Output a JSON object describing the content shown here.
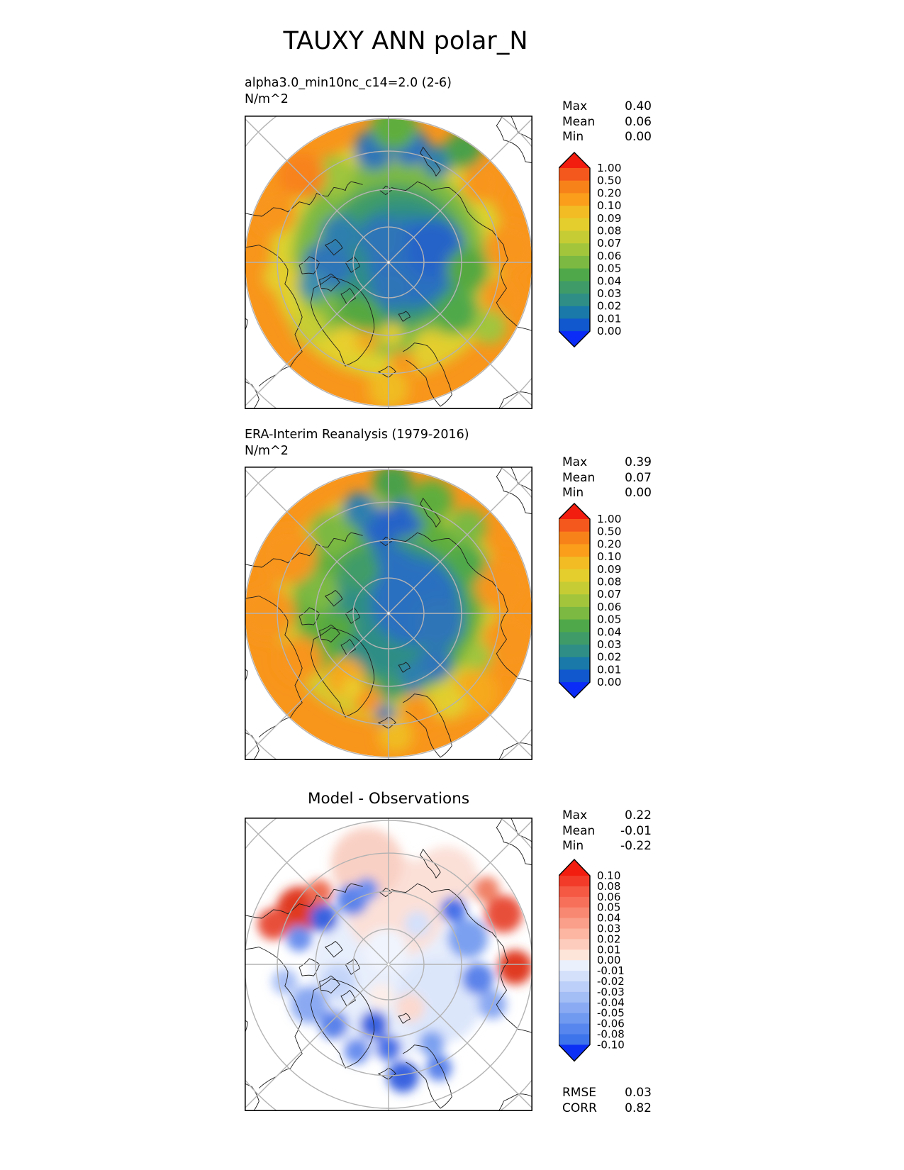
{
  "title": "TAUXY ANN polar_N",
  "chart_data": [
    {
      "type": "heatmap",
      "projection": "north_polar_stereographic",
      "title": "alpha3.0_min10nc_c14=2.0 (2-6)",
      "units": "N/m^2",
      "stats": [
        {
          "label": "Max",
          "value": "0.40"
        },
        {
          "label": "Mean",
          "value": "0.06"
        },
        {
          "label": "Min",
          "value": "0.00"
        }
      ],
      "colorbar": {
        "ticks": [
          "1.00",
          "0.50",
          "0.20",
          "0.10",
          "0.09",
          "0.08",
          "0.07",
          "0.06",
          "0.05",
          "0.04",
          "0.03",
          "0.02",
          "0.01",
          "0.00"
        ],
        "band_colors": [
          "#f4581c",
          "#f8821a",
          "#fa9e1b",
          "#f2bc24",
          "#e4ce2d",
          "#c6cd34",
          "#a2c53c",
          "#7bb942",
          "#4fa94a",
          "#3f9c68",
          "#2f8e85",
          "#1a79a8",
          "#1157ce"
        ],
        "over_color": "#f21d0e",
        "under_color": "#0b2bf6"
      },
      "graticule": {
        "circle_radii_frac": [
          0.246,
          0.507,
          0.773,
          1.0,
          1.28
        ],
        "radial_step_deg": 45
      },
      "field_blobs": {
        "base": "#f8951b",
        "blobs": [
          [
            0.0,
            -0.02,
            0.82,
            "#dcd32d"
          ],
          [
            0.0,
            -0.03,
            0.67,
            "#7bb942"
          ],
          [
            0.04,
            -0.04,
            0.5,
            "#3f9c68"
          ],
          [
            0.1,
            -0.02,
            0.4,
            "#2f8e85"
          ],
          [
            0.16,
            0.0,
            0.3,
            "#2a6fc0"
          ],
          [
            0.32,
            -0.1,
            0.2,
            "#2563c8"
          ],
          [
            -0.04,
            -0.16,
            0.16,
            "#2d74b8"
          ],
          [
            0.02,
            0.18,
            0.14,
            "#2d74b8"
          ],
          [
            -0.42,
            0.02,
            0.17,
            "#2d74b8"
          ],
          [
            -0.34,
            -0.2,
            0.13,
            "#2f7fae"
          ],
          [
            -0.52,
            0.16,
            0.1,
            "#3f8fae"
          ],
          [
            -0.1,
            -0.78,
            0.14,
            "#2d74b8"
          ],
          [
            0.15,
            -0.8,
            0.13,
            "#2a6fc0"
          ],
          [
            0.34,
            -0.7,
            0.11,
            "#2f7fae"
          ],
          [
            0.04,
            -0.94,
            0.16,
            "#5fae3e"
          ],
          [
            0.52,
            -0.78,
            0.13,
            "#4aa04a"
          ],
          [
            -0.38,
            -0.6,
            0.14,
            "#9fc43c"
          ],
          [
            -0.6,
            -0.6,
            0.16,
            "#f8821a"
          ],
          [
            -0.8,
            -0.35,
            0.16,
            "#f8951b"
          ],
          [
            0.65,
            -0.55,
            0.14,
            "#f8951b"
          ],
          [
            0.85,
            -0.1,
            0.18,
            "#f8951b"
          ],
          [
            0.8,
            0.25,
            0.16,
            "#f8951b"
          ],
          [
            0.55,
            0.05,
            0.15,
            "#55a83f"
          ],
          [
            0.48,
            0.35,
            0.15,
            "#4fa94a"
          ],
          [
            -0.2,
            0.38,
            0.15,
            "#55a83f"
          ],
          [
            -0.3,
            0.55,
            0.11,
            "#e8cf2d"
          ],
          [
            0.3,
            0.6,
            0.13,
            "#e3ce2d"
          ],
          [
            0.1,
            0.72,
            0.1,
            "#f8951b"
          ],
          [
            -0.15,
            0.55,
            0.08,
            "#f2a91c"
          ],
          [
            0.02,
            0.5,
            0.08,
            "#e3ce2d"
          ],
          [
            0.0,
            0.88,
            0.14,
            "#f0bc24"
          ],
          [
            -0.55,
            0.45,
            0.12,
            "#c6cd34"
          ],
          [
            0.7,
            0.45,
            0.12,
            "#a2c53c"
          ],
          [
            -0.75,
            0.1,
            0.12,
            "#e4ce2d"
          ]
        ]
      }
    },
    {
      "type": "heatmap",
      "projection": "north_polar_stereographic",
      "title": "ERA-Interim Reanalysis (1979-2016)",
      "units": "N/m^2",
      "stats": [
        {
          "label": "Max",
          "value": "0.39"
        },
        {
          "label": "Mean",
          "value": "0.07"
        },
        {
          "label": "Min",
          "value": "0.00"
        }
      ],
      "colorbar": {
        "ticks": [
          "1.00",
          "0.50",
          "0.20",
          "0.10",
          "0.09",
          "0.08",
          "0.07",
          "0.06",
          "0.05",
          "0.04",
          "0.03",
          "0.02",
          "0.01",
          "0.00"
        ],
        "band_colors": [
          "#f4581c",
          "#f8821a",
          "#fa9e1b",
          "#f2bc24",
          "#e4ce2d",
          "#c6cd34",
          "#a2c53c",
          "#7bb942",
          "#4fa94a",
          "#3f9c68",
          "#2f8e85",
          "#1a79a8",
          "#1157ce"
        ],
        "over_color": "#f21d0e",
        "under_color": "#0b2bf6"
      },
      "graticule": {
        "circle_radii_frac": [
          0.246,
          0.507,
          0.773,
          1.0,
          1.28
        ],
        "radial_step_deg": 45
      },
      "field_blobs": {
        "base": "#f8951b",
        "blobs": [
          [
            0.0,
            -0.05,
            0.8,
            "#cfd030"
          ],
          [
            0.0,
            -0.08,
            0.66,
            "#5fae3e"
          ],
          [
            0.06,
            -0.02,
            0.48,
            "#2f8e85"
          ],
          [
            0.18,
            -0.08,
            0.3,
            "#2a6fc0"
          ],
          [
            0.02,
            -0.28,
            0.18,
            "#2a6fc0"
          ],
          [
            0.35,
            0.06,
            0.17,
            "#2d74b8"
          ],
          [
            -0.05,
            -0.6,
            0.14,
            "#2563c8"
          ],
          [
            0.12,
            -0.66,
            0.13,
            "#2563c8"
          ],
          [
            -0.2,
            -0.72,
            0.12,
            "#2f7fae"
          ],
          [
            0.32,
            0.35,
            0.12,
            "#2d74b8"
          ],
          [
            0.16,
            0.45,
            0.1,
            "#2f7fae"
          ],
          [
            0.3,
            -0.78,
            0.15,
            "#5fae3e"
          ],
          [
            -0.4,
            -0.55,
            0.15,
            "#7bb942"
          ],
          [
            0.03,
            -0.9,
            0.14,
            "#4aa04a"
          ],
          [
            0.55,
            -0.6,
            0.13,
            "#7bb942"
          ],
          [
            -0.7,
            -0.4,
            0.2,
            "#f8951b"
          ],
          [
            -0.85,
            0.0,
            0.2,
            "#f8951b"
          ],
          [
            -0.62,
            0.32,
            0.16,
            "#f8951b"
          ],
          [
            0.8,
            -0.2,
            0.2,
            "#f8951b"
          ],
          [
            0.85,
            0.2,
            0.2,
            "#f8951b"
          ],
          [
            0.6,
            0.55,
            0.16,
            "#f6a91c"
          ],
          [
            -0.3,
            0.45,
            0.14,
            "#f6a91c"
          ],
          [
            -0.15,
            0.6,
            0.1,
            "#f8951b"
          ],
          [
            -0.25,
            0.52,
            0.07,
            "#e8cf2d"
          ],
          [
            0.2,
            0.68,
            0.12,
            "#f8951b"
          ],
          [
            0.02,
            0.52,
            0.09,
            "#3f9c68"
          ],
          [
            -0.02,
            0.7,
            0.07,
            "#2d74b8"
          ],
          [
            0.42,
            0.62,
            0.12,
            "#e3ce2d"
          ],
          [
            0.05,
            0.85,
            0.12,
            "#f0bc24"
          ],
          [
            -0.48,
            -0.15,
            0.14,
            "#7bb942"
          ],
          [
            -0.35,
            0.1,
            0.12,
            "#55a83f"
          ],
          [
            0.55,
            -0.35,
            0.13,
            "#4fa94a"
          ],
          [
            -0.2,
            -0.3,
            0.14,
            "#3f9c68"
          ],
          [
            0.62,
            0.3,
            0.1,
            "#a2c53c"
          ]
        ]
      }
    },
    {
      "type": "heatmap",
      "projection": "north_polar_stereographic",
      "title": "Model - Observations",
      "units": "",
      "stats": [
        {
          "label": "Max",
          "value": "0.22"
        },
        {
          "label": "Mean",
          "value": "-0.01"
        },
        {
          "label": "Min",
          "value": "-0.22"
        }
      ],
      "metrics": [
        {
          "label": "RMSE",
          "value": "0.03"
        },
        {
          "label": "CORR",
          "value": "0.82"
        }
      ],
      "colorbar": {
        "ticks": [
          "0.10",
          "0.08",
          "0.06",
          "0.05",
          "0.04",
          "0.03",
          "0.02",
          "0.01",
          "0.00",
          "-0.01",
          "-0.02",
          "-0.03",
          "-0.04",
          "-0.05",
          "-0.06",
          "-0.08",
          "-0.10"
        ],
        "band_colors": [
          "#f23b28",
          "#f55843",
          "#f7705a",
          "#f98872",
          "#fa9f8a",
          "#fcb6a2",
          "#fdccbc",
          "#fee5da",
          "#eaf0fc",
          "#d4e0fa",
          "#bccff8",
          "#a3bdf5",
          "#8aabf3",
          "#7099f0",
          "#5787ee",
          "#3e74eb"
        ],
        "over_color": "#f21d0e",
        "under_color": "#0c2ff5"
      },
      "graticule": {
        "circle_radii_frac": [
          0.246,
          0.507,
          0.773,
          1.0,
          1.28
        ],
        "radial_step_deg": 45
      },
      "field_blobs": {
        "base": "#ffffff",
        "blobs": [
          [
            0.0,
            0.1,
            0.55,
            "#e7eefc"
          ],
          [
            0.35,
            0.25,
            0.3,
            "#dce6fb"
          ],
          [
            0.05,
            -0.4,
            0.35,
            "#fbe0d8"
          ],
          [
            -0.15,
            -0.7,
            0.25,
            "#f9d0c4"
          ],
          [
            0.4,
            -0.6,
            0.22,
            "#fbe0d8"
          ],
          [
            -0.62,
            -0.38,
            0.16,
            "#e03a20"
          ],
          [
            -0.8,
            -0.28,
            0.11,
            "#e8503a"
          ],
          [
            -0.48,
            -0.5,
            0.09,
            "#ef7054"
          ],
          [
            -0.45,
            -0.32,
            0.1,
            "#3a64e0"
          ],
          [
            -0.62,
            -0.18,
            0.09,
            "#6a8fee"
          ],
          [
            -0.25,
            -0.45,
            0.11,
            "#5b83ea"
          ],
          [
            0.8,
            -0.35,
            0.13,
            "#e8503a"
          ],
          [
            0.88,
            0.02,
            0.12,
            "#e03a20"
          ],
          [
            0.68,
            -0.52,
            0.09,
            "#f08268"
          ],
          [
            0.55,
            -0.18,
            0.14,
            "#7ba0f0"
          ],
          [
            0.62,
            0.1,
            0.11,
            "#5b83ea"
          ],
          [
            0.45,
            -0.38,
            0.09,
            "#4a72e8"
          ],
          [
            0.72,
            0.28,
            0.1,
            "#8aa9f2"
          ],
          [
            -0.55,
            0.28,
            0.13,
            "#8aa9f2"
          ],
          [
            -0.38,
            0.42,
            0.1,
            "#5b83ea"
          ],
          [
            -0.72,
            0.12,
            0.09,
            "#a9c0f6"
          ],
          [
            -0.1,
            0.42,
            0.1,
            "#3a64e0"
          ],
          [
            0.0,
            0.58,
            0.09,
            "#4a72e8"
          ],
          [
            -0.22,
            0.6,
            0.09,
            "#6a8fee"
          ],
          [
            0.1,
            0.78,
            0.11,
            "#3a64e0"
          ],
          [
            0.3,
            0.55,
            0.09,
            "#7ba0f0"
          ],
          [
            0.15,
            0.3,
            0.1,
            "#fbd9cf"
          ],
          [
            -0.05,
            0.22,
            0.09,
            "#fceee9"
          ],
          [
            -0.15,
            -0.52,
            0.08,
            "#6a8fee"
          ],
          [
            0.2,
            -0.28,
            0.09,
            "#d4e0fa"
          ],
          [
            -0.35,
            0.12,
            0.12,
            "#c3d4f9"
          ],
          [
            0.35,
            0.72,
            0.09,
            "#5b83ea"
          ],
          [
            -0.02,
            -0.1,
            0.15,
            "#f0f4fd"
          ]
        ]
      }
    }
  ]
}
